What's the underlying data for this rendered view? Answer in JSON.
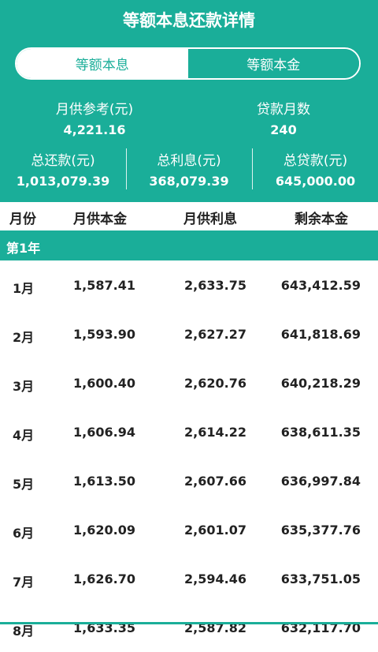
{
  "title": "等额本息还款详情",
  "tabs": [
    {
      "label": "等额本息",
      "active": true
    },
    {
      "label": "等额本金",
      "active": false
    }
  ],
  "summary": {
    "monthly_label": "月供参考(元)",
    "monthly_value": "4,221.16",
    "months_label": "贷款月数",
    "months_value": "240",
    "total_repay_label": "总还款(元)",
    "total_repay_value": "1,013,079.39",
    "total_interest_label": "总利息(元)",
    "total_interest_value": "368,079.39",
    "total_loan_label": "总贷款(元)",
    "total_loan_value": "645,000.00"
  },
  "columns": [
    "月份",
    "月供本金",
    "月供利息",
    "剩余本金"
  ],
  "year_label": "第1年",
  "rows": [
    {
      "month": "1月",
      "principal": "1,587.41",
      "interest": "2,633.75",
      "remaining": "643,412.59"
    },
    {
      "month": "2月",
      "principal": "1,593.90",
      "interest": "2,627.27",
      "remaining": "641,818.69"
    },
    {
      "month": "3月",
      "principal": "1,600.40",
      "interest": "2,620.76",
      "remaining": "640,218.29"
    },
    {
      "month": "4月",
      "principal": "1,606.94",
      "interest": "2,614.22",
      "remaining": "638,611.35"
    },
    {
      "month": "5月",
      "principal": "1,613.50",
      "interest": "2,607.66",
      "remaining": "636,997.84"
    },
    {
      "month": "6月",
      "principal": "1,620.09",
      "interest": "2,601.07",
      "remaining": "635,377.76"
    },
    {
      "month": "7月",
      "principal": "1,626.70",
      "interest": "2,594.46",
      "remaining": "633,751.05"
    },
    {
      "month": "8月",
      "principal": "1,633.35",
      "interest": "2,587.82",
      "remaining": "632,117.70"
    }
  ],
  "colors": {
    "accent": "#1aae99",
    "background": "#ffffff",
    "text": "#222222"
  }
}
